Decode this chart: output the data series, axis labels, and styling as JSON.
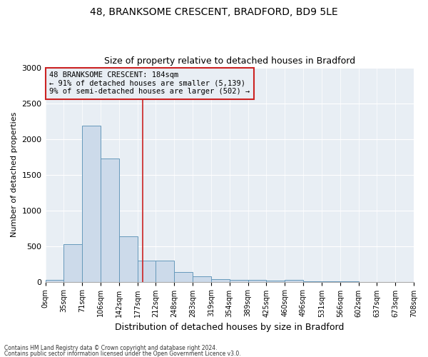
{
  "title_line1": "48, BRANKSOME CRESCENT, BRADFORD, BD9 5LE",
  "title_line2": "Size of property relative to detached houses in Bradford",
  "xlabel": "Distribution of detached houses by size in Bradford",
  "ylabel": "Number of detached properties",
  "bin_labels": [
    "0sqm",
    "35sqm",
    "71sqm",
    "106sqm",
    "142sqm",
    "177sqm",
    "212sqm",
    "248sqm",
    "283sqm",
    "319sqm",
    "354sqm",
    "389sqm",
    "425sqm",
    "460sqm",
    "496sqm",
    "531sqm",
    "566sqm",
    "602sqm",
    "637sqm",
    "673sqm",
    "708sqm"
  ],
  "bar_values": [
    30,
    525,
    2185,
    1730,
    635,
    295,
    295,
    140,
    80,
    40,
    30,
    25,
    20,
    30,
    5,
    5,
    5,
    0,
    0,
    0
  ],
  "bar_color": "#ccdaea",
  "bar_edge_color": "#6699bb",
  "vline_x": 5.27,
  "vline_color": "#cc2222",
  "ylim": [
    0,
    3000
  ],
  "yticks": [
    0,
    500,
    1000,
    1500,
    2000,
    2500,
    3000
  ],
  "annotation_title": "48 BRANKSOME CRESCENT: 184sqm",
  "annotation_line2": "← 91% of detached houses are smaller (5,139)",
  "annotation_line3": "9% of semi-detached houses are larger (502) →",
  "footnote1": "Contains HM Land Registry data © Crown copyright and database right 2024.",
  "footnote2": "Contains public sector information licensed under the Open Government Licence v3.0.",
  "background_color": "#ffffff",
  "plot_bg_color": "#e8eef4",
  "grid_color": "#ffffff"
}
